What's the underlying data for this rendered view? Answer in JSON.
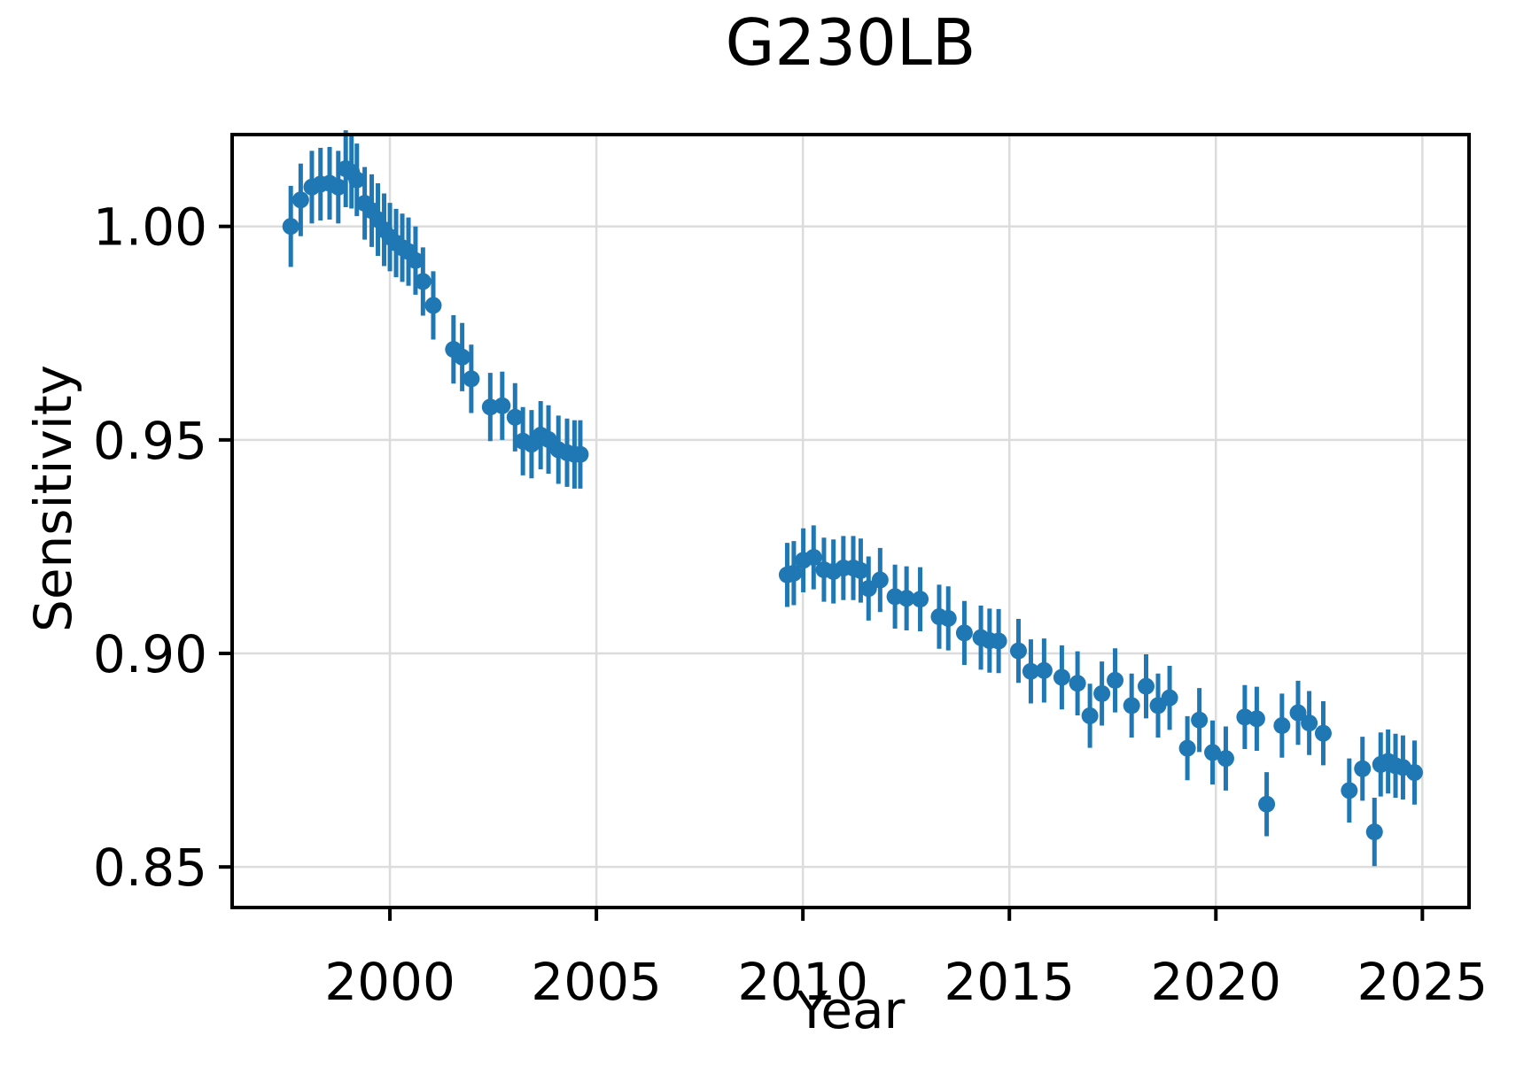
{
  "title": "G230LB",
  "axes": {
    "xlabel": "Year",
    "ylabel": "Sensitivity"
  },
  "colors": {
    "marker": "#1f77b4",
    "errorbar": "#1f77b4",
    "grid": "#dcdcdc",
    "spine": "#000000",
    "background": "#ffffff"
  },
  "chart_data": {
    "type": "scatter",
    "title": "G230LB",
    "xlabel": "Year",
    "ylabel": "Sensitivity",
    "grid": true,
    "legend": "none",
    "xlim": [
      1996.18,
      2026.13
    ],
    "ylim": [
      0.8405,
      1.0215
    ],
    "xticks": [
      2000,
      2005,
      2010,
      2015,
      2020,
      2025
    ],
    "xtick_labels": [
      "2000",
      "2005",
      "2010",
      "2015",
      "2020",
      "2025"
    ],
    "yticks": [
      0.85,
      0.9,
      0.95,
      1.0
    ],
    "ytick_labels": [
      "0.85",
      "0.90",
      "0.95",
      "1.00"
    ],
    "marker": "circle",
    "marker_color": "#1f77b4",
    "series": [
      {
        "name": "sensitivity",
        "x": [
          1997.6,
          1997.84,
          1998.11,
          1998.32,
          1998.54,
          1998.75,
          1998.93,
          1999.07,
          1999.2,
          1999.39,
          1999.56,
          1999.71,
          1999.86,
          2000.0,
          2000.15,
          2000.3,
          2000.45,
          2000.62,
          2000.8,
          2001.05,
          2001.54,
          2001.75,
          2001.97,
          2002.43,
          2002.72,
          2003.03,
          2003.22,
          2003.43,
          2003.65,
          2003.84,
          2004.08,
          2004.29,
          2004.47,
          2004.61,
          2009.62,
          2009.78,
          2010.01,
          2010.26,
          2010.51,
          2010.74,
          2010.98,
          2011.22,
          2011.4,
          2011.59,
          2011.87,
          2012.23,
          2012.51,
          2012.84,
          2013.3,
          2013.52,
          2013.91,
          2014.31,
          2014.52,
          2014.74,
          2015.22,
          2015.52,
          2015.84,
          2016.27,
          2016.65,
          2016.95,
          2017.24,
          2017.56,
          2017.96,
          2018.31,
          2018.6,
          2018.88,
          2019.31,
          2019.6,
          2019.92,
          2020.24,
          2020.7,
          2020.99,
          2021.23,
          2021.6,
          2021.99,
          2022.26,
          2022.6,
          2023.23,
          2023.55,
          2023.84,
          2023.99,
          2024.17,
          2024.35,
          2024.53,
          2024.81
        ],
        "y": [
          1.0,
          1.0062,
          1.0092,
          1.0099,
          1.0101,
          1.0092,
          1.0135,
          1.0127,
          1.0109,
          1.0054,
          1.0037,
          1.0016,
          0.9992,
          0.9975,
          0.9961,
          0.995,
          0.9941,
          0.992,
          0.9871,
          0.9815,
          0.9712,
          0.9694,
          0.9643,
          0.9577,
          0.958,
          0.9553,
          0.9497,
          0.949,
          0.9511,
          0.9501,
          0.9477,
          0.947,
          0.9466,
          0.9466,
          0.9184,
          0.9188,
          0.9218,
          0.9225,
          0.9196,
          0.9192,
          0.92,
          0.92,
          0.9194,
          0.9152,
          0.9172,
          0.9133,
          0.9129,
          0.9127,
          0.9086,
          0.9082,
          0.9048,
          0.9037,
          0.903,
          0.9029,
          0.9006,
          0.8958,
          0.896,
          0.8944,
          0.893,
          0.8854,
          0.8906,
          0.8937,
          0.8878,
          0.8923,
          0.8878,
          0.8896,
          0.8778,
          0.8844,
          0.8768,
          0.8754,
          0.8851,
          0.8847,
          0.8647,
          0.8831,
          0.8861,
          0.8837,
          0.8813,
          0.8679,
          0.873,
          0.8582,
          0.874,
          0.8747,
          0.8737,
          0.8733,
          0.8721
        ],
        "yerr": [
          0.0095,
          0.0085,
          0.0085,
          0.0085,
          0.0085,
          0.0085,
          0.009,
          0.0085,
          0.0085,
          0.0085,
          0.0085,
          0.0085,
          0.0085,
          0.008,
          0.008,
          0.008,
          0.008,
          0.008,
          0.008,
          0.008,
          0.008,
          0.008,
          0.008,
          0.008,
          0.008,
          0.008,
          0.008,
          0.008,
          0.008,
          0.008,
          0.008,
          0.008,
          0.008,
          0.008,
          0.0075,
          0.0075,
          0.0075,
          0.0075,
          0.0075,
          0.0075,
          0.0075,
          0.0075,
          0.0075,
          0.0075,
          0.0075,
          0.0075,
          0.0075,
          0.0075,
          0.0075,
          0.0075,
          0.0075,
          0.0075,
          0.0075,
          0.0075,
          0.0075,
          0.0075,
          0.0075,
          0.0075,
          0.0075,
          0.0075,
          0.0075,
          0.0075,
          0.0075,
          0.0075,
          0.0075,
          0.0075,
          0.0075,
          0.0075,
          0.0075,
          0.0075,
          0.0075,
          0.0075,
          0.0075,
          0.0075,
          0.0075,
          0.0075,
          0.0075,
          0.0075,
          0.0075,
          0.008,
          0.0075,
          0.0075,
          0.0075,
          0.0075,
          0.0075
        ]
      }
    ]
  }
}
